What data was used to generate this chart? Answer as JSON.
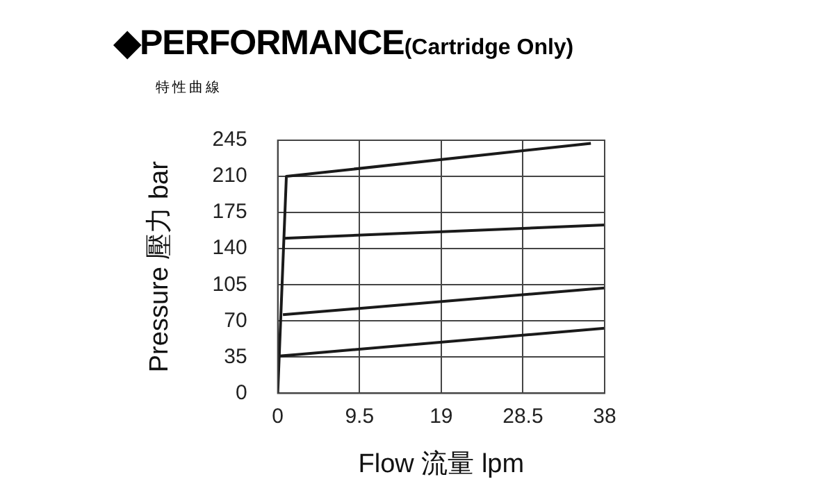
{
  "chart_data": {
    "type": "line",
    "title": "◆PERFORMANCE",
    "subtitle": "(Cartridge Only)",
    "annotations": [
      "特性曲線"
    ],
    "xlabel": "Flow 流量 lpm",
    "ylabel": "Pressure 壓力 bar",
    "series": [
      {
        "color": "#1a1a1a",
        "x": [
          0,
          1,
          36.4
        ],
        "values": [
          0,
          210,
          242
        ]
      },
      {
        "color": "#1a1a1a",
        "x": [
          0.7,
          38
        ],
        "values": [
          150,
          163
        ]
      },
      {
        "color": "#1a1a1a",
        "x": [
          0.6,
          38
        ],
        "values": [
          76,
          102
        ]
      },
      {
        "color": "#1a1a1a",
        "x": [
          0.2,
          38
        ],
        "values": [
          36,
          63
        ]
      }
    ],
    "xlim": [
      0,
      38
    ],
    "xticks": [
      0,
      9.5,
      19,
      28.5,
      38
    ],
    "ylim": [
      0,
      245
    ],
    "yticks": [
      0,
      35,
      70,
      105,
      140,
      175,
      210,
      245
    ],
    "grid": true,
    "legend": false,
    "marker": "none",
    "line_style": "solid"
  }
}
